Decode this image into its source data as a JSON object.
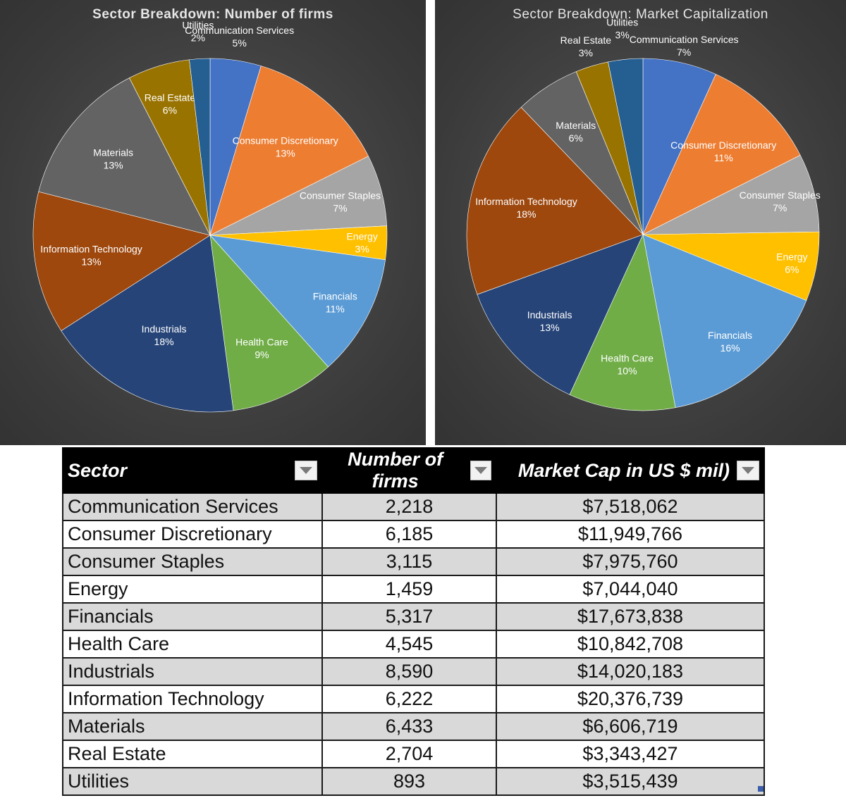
{
  "chart_data": [
    {
      "type": "pie",
      "title": "Sector Breakdown: Number of firms",
      "slices": [
        {
          "label": "Communication Services",
          "percent_label": "5%",
          "value": 2218,
          "color": "#4472c4"
        },
        {
          "label": "Consumer Discretionary",
          "percent_label": "13%",
          "value": 6185,
          "color": "#ed7d31"
        },
        {
          "label": "Consumer Staples",
          "percent_label": "7%",
          "value": 3115,
          "color": "#a5a5a5"
        },
        {
          "label": "Energy",
          "percent_label": "3%",
          "value": 1459,
          "color": "#ffc000"
        },
        {
          "label": "Financials",
          "percent_label": "11%",
          "value": 5317,
          "color": "#5b9bd5"
        },
        {
          "label": "Health Care",
          "percent_label": "9%",
          "value": 4545,
          "color": "#70ad47"
        },
        {
          "label": "Industrials",
          "percent_label": "18%",
          "value": 8590,
          "color": "#264478"
        },
        {
          "label": "Information Technology",
          "percent_label": "13%",
          "value": 6222,
          "color": "#9e480e"
        },
        {
          "label": "Materials",
          "percent_label": "13%",
          "value": 6433,
          "color": "#636363"
        },
        {
          "label": "Real Estate",
          "percent_label": "6%",
          "value": 2704,
          "color": "#997300"
        },
        {
          "label": "Utilities",
          "percent_label": "2%",
          "value": 893,
          "color": "#255e91"
        }
      ]
    },
    {
      "type": "pie",
      "title": "Sector Breakdown: Market Capitalization",
      "slices": [
        {
          "label": "Communication Services",
          "percent_label": "7%",
          "value": 7518062,
          "color": "#4472c4"
        },
        {
          "label": "Consumer Discretionary",
          "percent_label": "11%",
          "value": 11949766,
          "color": "#ed7d31"
        },
        {
          "label": "Consumer Staples",
          "percent_label": "7%",
          "value": 7975760,
          "color": "#a5a5a5"
        },
        {
          "label": "Energy",
          "percent_label": "6%",
          "value": 7044040,
          "color": "#ffc000"
        },
        {
          "label": "Financials",
          "percent_label": "16%",
          "value": 17673838,
          "color": "#5b9bd5"
        },
        {
          "label": "Health Care",
          "percent_label": "10%",
          "value": 10842708,
          "color": "#70ad47"
        },
        {
          "label": "Industrials",
          "percent_label": "13%",
          "value": 14020183,
          "color": "#264478"
        },
        {
          "label": "Information Technology",
          "percent_label": "18%",
          "value": 20376739,
          "color": "#9e480e"
        },
        {
          "label": "Materials",
          "percent_label": "6%",
          "value": 6606719,
          "color": "#636363"
        },
        {
          "label": "Real Estate",
          "percent_label": "3%",
          "value": 3343427,
          "color": "#997300"
        },
        {
          "label": "Utilities",
          "percent_label": "3%",
          "value": 3515439,
          "color": "#255e91"
        }
      ]
    },
    {
      "type": "table",
      "columns": [
        "Sector",
        "Number of firms",
        "Market Cap in US $ mil)"
      ],
      "rows": [
        [
          "Communication Services",
          "2,218",
          "$7,518,062"
        ],
        [
          "Consumer Discretionary",
          "6,185",
          "$11,949,766"
        ],
        [
          "Consumer Staples",
          "3,115",
          "$7,975,760"
        ],
        [
          "Energy",
          "1,459",
          "$7,044,040"
        ],
        [
          "Financials",
          "5,317",
          "$17,673,838"
        ],
        [
          "Health Care",
          "4,545",
          "$10,842,708"
        ],
        [
          "Industrials",
          "8,590",
          "$14,020,183"
        ],
        [
          "Information Technology",
          "6,222",
          "$20,376,739"
        ],
        [
          "Materials",
          "6,433",
          "$6,606,719"
        ],
        [
          "Real Estate",
          "2,704",
          "$3,343,427"
        ],
        [
          "Utilities",
          "893",
          "$3,515,439"
        ]
      ]
    }
  ],
  "icons": {
    "filter": "dropdown-filter-icon"
  }
}
